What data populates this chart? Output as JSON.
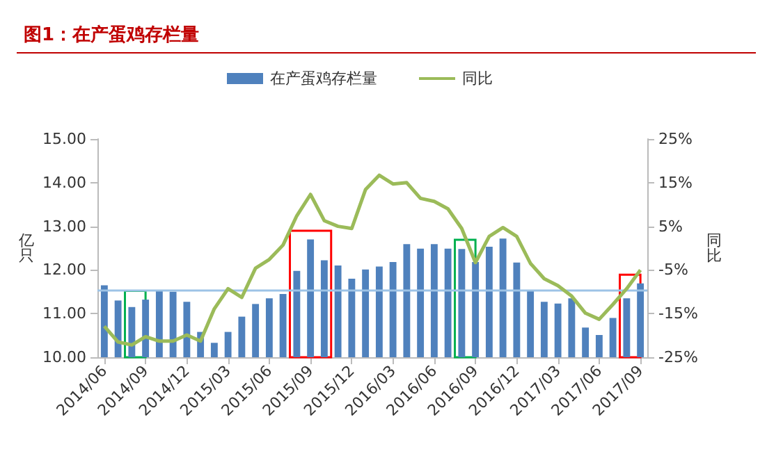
{
  "chart_data": {
    "type": "bar",
    "title": "图1：在产蛋鸡存栏量",
    "categories": [
      "2014/06",
      null,
      null,
      "2014/09",
      null,
      null,
      "2014/12",
      null,
      null,
      "2015/03",
      null,
      null,
      "2015/06",
      null,
      null,
      "2015/09",
      null,
      null,
      "2015/12",
      null,
      null,
      "2016/03",
      null,
      null,
      "2016/06",
      null,
      null,
      "2016/09",
      null,
      null,
      "2016/12",
      null,
      null,
      "2017/03",
      null,
      null,
      "2017/06",
      null,
      null,
      "2017/09"
    ],
    "series": [
      {
        "name": "在产蛋鸡存栏量",
        "color": "#4f81bd",
        "values": [
          11.65,
          11.3,
          11.15,
          11.32,
          11.52,
          11.5,
          11.27,
          10.58,
          10.33,
          10.58,
          10.93,
          11.22,
          11.35,
          11.45,
          11.98,
          12.7,
          12.22,
          12.1,
          11.8,
          12.01,
          12.08,
          12.18,
          12.59,
          12.49,
          12.59,
          12.49,
          12.48,
          12.18,
          12.53,
          12.72,
          12.17,
          11.54,
          11.27,
          11.23,
          11.35,
          10.68,
          10.51,
          10.9,
          11.35,
          11.69
        ]
      },
      {
        "name": "同比",
        "type": "line",
        "axis": "y2",
        "color": "#9bbb59",
        "values": [
          -17.9,
          -21.5,
          -22.2,
          -20.3,
          -21.3,
          -21.3,
          -19.9,
          -21.3,
          -13.9,
          -9.3,
          -11.3,
          -4.6,
          -2.6,
          0.7,
          7.4,
          12.3,
          6.3,
          5,
          4.5,
          13.4,
          16.7,
          14.7,
          15,
          11.4,
          10.7,
          9,
          4.5,
          -3.3,
          2.7,
          4.7,
          2.7,
          -3.5,
          -7,
          -8.6,
          -11,
          -14.9,
          -16.3,
          -12.9,
          -9.3,
          -5
        ]
      }
    ],
    "ylabel": "亿只",
    "y2label": "同比",
    "ylim": [
      10,
      15
    ],
    "yticks": [
      {
        "value": 10,
        "label": "10.00"
      },
      {
        "value": 11,
        "label": "11.00"
      },
      {
        "value": 12,
        "label": "12.00"
      },
      {
        "value": 13,
        "label": "13.00"
      },
      {
        "value": 14,
        "label": "14.00"
      },
      {
        "value": 15,
        "label": "15.00"
      }
    ],
    "y2lim": [
      -25,
      25
    ],
    "y2ticks": [
      {
        "value": -25,
        "label": "-25%"
      },
      {
        "value": -15,
        "label": "-15%"
      },
      {
        "value": -5,
        "label": "-5%"
      },
      {
        "value": 5,
        "label": "5%"
      },
      {
        "value": 15,
        "label": "15%"
      },
      {
        "value": 25,
        "label": "25%"
      }
    ],
    "ref_lines": [
      {
        "axis": "y",
        "value": 11.55,
        "color": "#9dc3e6"
      }
    ],
    "grid": false,
    "legend": "top",
    "line_style": "solid",
    "marker": "none"
  }
}
